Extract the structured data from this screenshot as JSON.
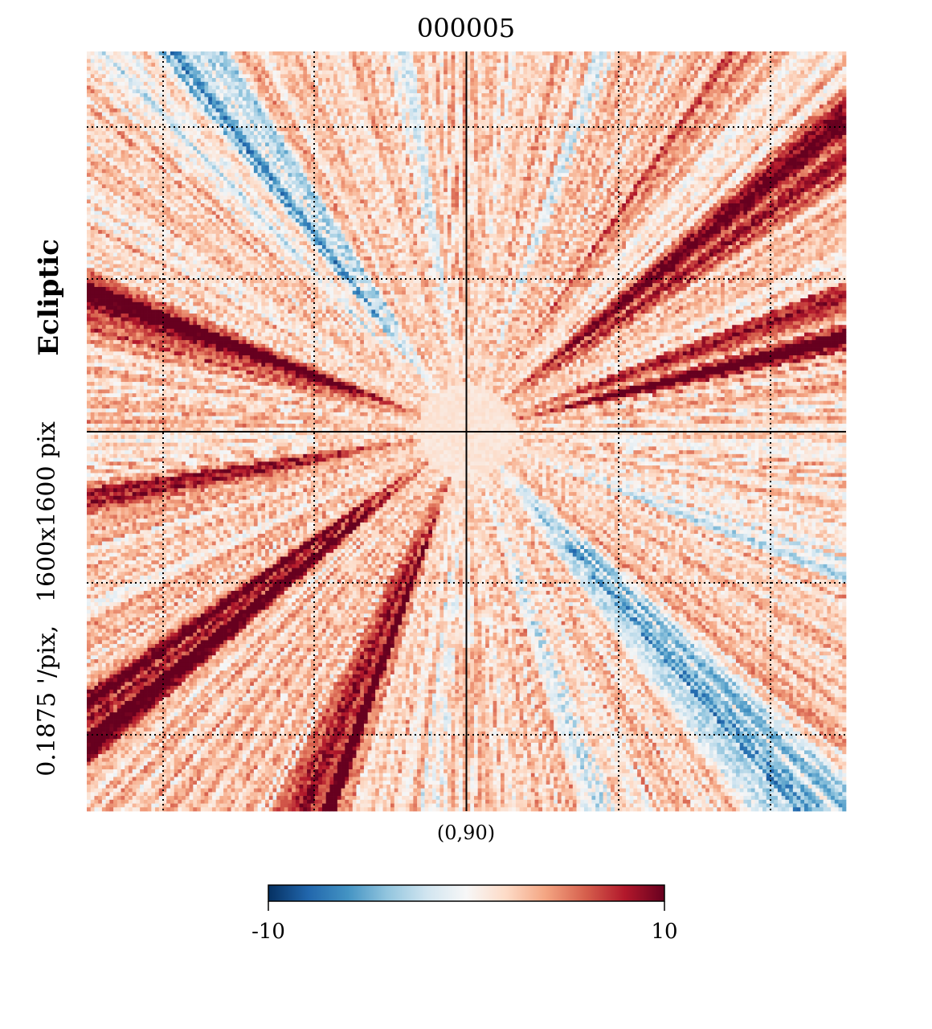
{
  "chart_data": {
    "type": "heatmap",
    "title": "000005",
    "projection": "gnomonic",
    "center_label": "(0,90)",
    "coord_label": "Ecliptic",
    "resolution_label": "0.1875 '/pix,   1600x1600 pix",
    "colorbar": {
      "min": -10,
      "max": 10,
      "min_label": "-10",
      "max_label": "10",
      "colormap": "RdBu_r",
      "stops": [
        "#053061",
        "#2166ac",
        "#4393c3",
        "#92c5de",
        "#d1e5f0",
        "#f7f7f7",
        "#fddbc7",
        "#f4a582",
        "#d6604d",
        "#b2182b",
        "#67001f"
      ]
    },
    "graticule": {
      "style": "dotted",
      "cross_through_center": true
    },
    "grid_cells": 200,
    "background_bias": 2.2
  }
}
